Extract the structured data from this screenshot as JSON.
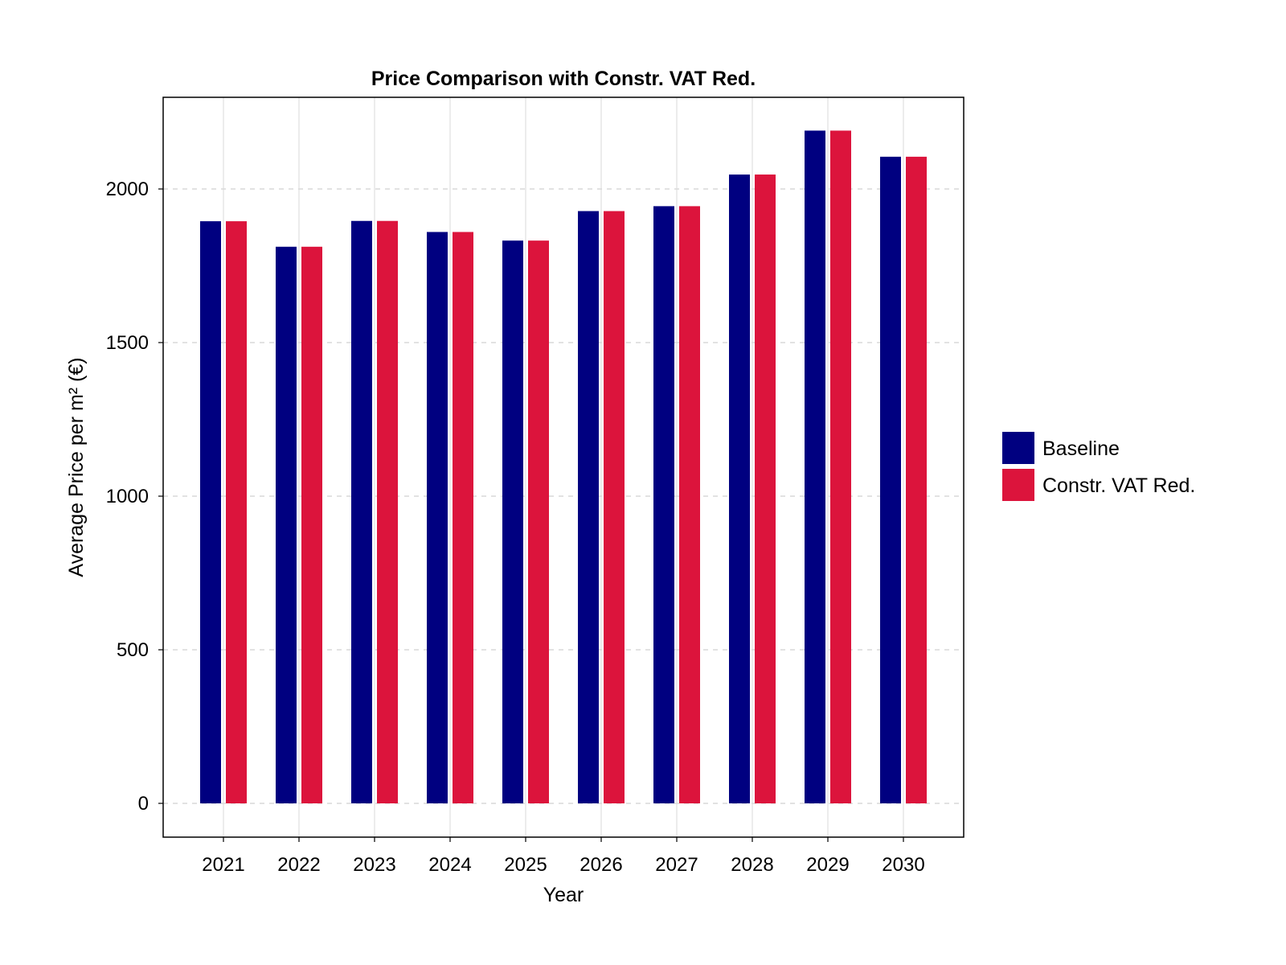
{
  "chart_data": {
    "type": "bar",
    "title": "Price Comparison with Constr. VAT Red.",
    "xlabel": "Year",
    "ylabel": "Average Price per m² (€)",
    "categories": [
      "2021",
      "2022",
      "2023",
      "2024",
      "2025",
      "2026",
      "2027",
      "2028",
      "2029",
      "2030"
    ],
    "series": [
      {
        "name": "Baseline",
        "color": "#000080",
        "values": [
          1895,
          1812,
          1896,
          1860,
          1832,
          1928,
          1944,
          2047,
          2190,
          2105
        ]
      },
      {
        "name": "Constr. VAT Red.",
        "color": "#dc143c",
        "values": [
          1895,
          1812,
          1896,
          1860,
          1832,
          1928,
          1944,
          2047,
          2190,
          2105
        ]
      }
    ],
    "ylim": [
      -110,
      2300
    ],
    "yticks": [
      0,
      500,
      1000,
      1500,
      2000
    ],
    "grid": {
      "x": true,
      "y": true,
      "y_style": "dashed"
    },
    "legend": {
      "placement": "right"
    }
  }
}
